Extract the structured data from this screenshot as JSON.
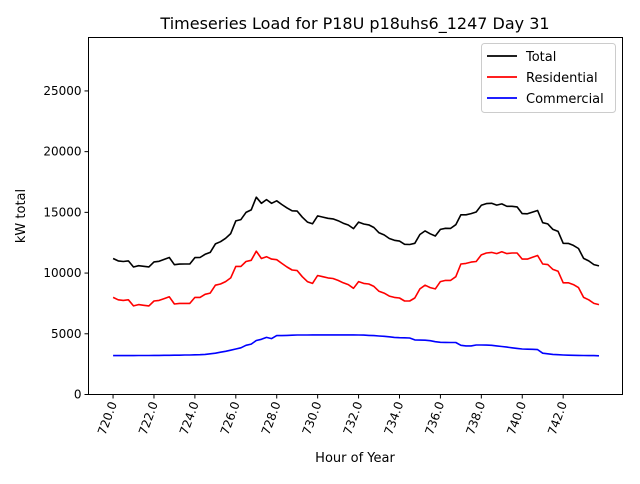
{
  "chart_data": {
    "type": "line",
    "title": "Timeseries Load for P18U p18uhs6_1247  Day 31",
    "xlabel": "Hour of Year",
    "ylabel": "kW total",
    "xlim": [
      718.8,
      744.9
    ],
    "ylim": [
      0,
      29400
    ],
    "xticks": [
      720,
      722,
      724,
      726,
      728,
      730,
      732,
      734,
      736,
      738,
      740,
      742
    ],
    "xtick_labels": [
      "720.0",
      "722.0",
      "724.0",
      "726.0",
      "728.0",
      "730.0",
      "732.0",
      "734.0",
      "736.0",
      "738.0",
      "740.0",
      "742.0"
    ],
    "yticks": [
      0,
      5000,
      10000,
      15000,
      20000,
      25000
    ],
    "ytick_labels": [
      "0",
      "5000",
      "10000",
      "15000",
      "20000",
      "25000"
    ],
    "grid": false,
    "legend_position": "top-right",
    "x_start": 720,
    "x_step": 0.25,
    "series": [
      {
        "name": "Total",
        "color": "#000000",
        "values": [
          11200,
          11000,
          10950,
          11000,
          10500,
          10610,
          10560,
          10510,
          10920,
          10970,
          11130,
          11280,
          10690,
          10740,
          10750,
          10750,
          11270,
          11280,
          11550,
          11700,
          12400,
          12580,
          12860,
          13250,
          14300,
          14400,
          15000,
          15200,
          16250,
          15750,
          16050,
          15750,
          15950,
          15650,
          15370,
          15130,
          15100,
          14600,
          14200,
          14060,
          14710,
          14610,
          14510,
          14460,
          14310,
          14110,
          13960,
          13660,
          14200,
          14040,
          13970,
          13750,
          13320,
          13140,
          12850,
          12700,
          12630,
          12370,
          12350,
          12450,
          13180,
          13470,
          13230,
          13050,
          13600,
          13690,
          13680,
          13980,
          14800,
          14800,
          14900,
          15030,
          15580,
          15720,
          15750,
          15600,
          15700,
          15500,
          15500,
          15450,
          14900,
          14880,
          15020,
          15150,
          14150,
          14050,
          13600,
          13430,
          12450,
          12440,
          12280,
          12020,
          11210,
          11000,
          10700,
          10590
        ]
      },
      {
        "name": "Residential",
        "color": "#ff0000",
        "values": [
          8000,
          7800,
          7750,
          7800,
          7300,
          7400,
          7350,
          7300,
          7700,
          7750,
          7900,
          8050,
          7450,
          7500,
          7500,
          7500,
          8000,
          8000,
          8250,
          8350,
          9000,
          9100,
          9300,
          9600,
          10550,
          10550,
          10950,
          11050,
          11800,
          11200,
          11350,
          11150,
          11100,
          10800,
          10500,
          10250,
          10200,
          9700,
          9300,
          9150,
          9800,
          9700,
          9600,
          9550,
          9400,
          9200,
          9050,
          8750,
          9300,
          9150,
          9100,
          8900,
          8500,
          8350,
          8100,
          8000,
          7950,
          7700,
          7700,
          7950,
          8700,
          9000,
          8800,
          8700,
          9300,
          9400,
          9400,
          9700,
          10750,
          10800,
          10900,
          10950,
          11500,
          11650,
          11700,
          11600,
          11750,
          11600,
          11650,
          11650,
          11150,
          11150,
          11300,
          11450,
          10750,
          10700,
          10300,
          10150,
          9200,
          9200,
          9050,
          8800,
          8000,
          7800,
          7500,
          7400
        ]
      },
      {
        "name": "Commercial",
        "color": "#0000ff",
        "values": [
          3200,
          3200,
          3200,
          3200,
          3200,
          3210,
          3210,
          3210,
          3220,
          3220,
          3230,
          3230,
          3240,
          3240,
          3250,
          3250,
          3270,
          3280,
          3300,
          3350,
          3400,
          3480,
          3560,
          3650,
          3750,
          3850,
          4050,
          4150,
          4450,
          4550,
          4700,
          4600,
          4850,
          4850,
          4870,
          4880,
          4900,
          4900,
          4900,
          4910,
          4910,
          4910,
          4910,
          4910,
          4910,
          4910,
          4910,
          4910,
          4900,
          4890,
          4870,
          4850,
          4820,
          4790,
          4750,
          4700,
          4680,
          4670,
          4650,
          4500,
          4480,
          4470,
          4430,
          4350,
          4300,
          4290,
          4280,
          4280,
          4050,
          4000,
          4000,
          4080,
          4080,
          4070,
          4050,
          4000,
          3950,
          3900,
          3850,
          3800,
          3750,
          3730,
          3720,
          3700,
          3400,
          3350,
          3300,
          3280,
          3250,
          3240,
          3230,
          3220,
          3210,
          3200,
          3200,
          3190
        ]
      }
    ]
  }
}
